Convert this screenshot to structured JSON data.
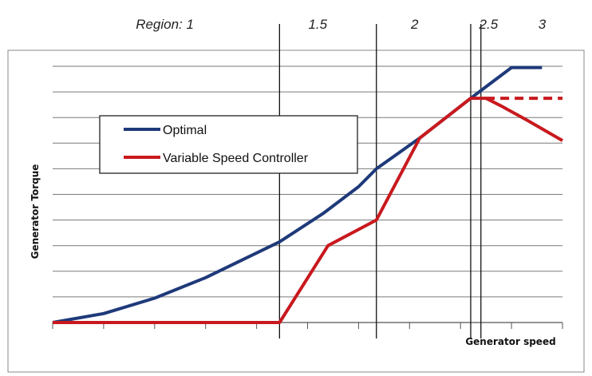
{
  "chart_data": {
    "type": "line",
    "title": "",
    "xlabel": "Generator speed",
    "ylabel": "Generator Torque",
    "xlim": [
      0,
      10
    ],
    "ylim": [
      0,
      10
    ],
    "grid": "horizontal",
    "legend_position": "upper-left",
    "regions": [
      {
        "label": "Region: 1",
        "x": 2.2
      },
      {
        "label": "1.5",
        "x": 5.2
      },
      {
        "label": "2",
        "x": 7.1
      },
      {
        "label": "2.5",
        "x": 8.55
      },
      {
        "label": "3",
        "x": 9.6
      }
    ],
    "region_boundaries": [
      4.45,
      6.35,
      8.2,
      8.4
    ],
    "series": [
      {
        "name": "Optimal",
        "color": "#1f3a7a",
        "style": "solid",
        "x": [
          0,
          1,
          2,
          3,
          4.45,
          5.3,
          6.0,
          6.35,
          7.2,
          8.2,
          8.6,
          9.0,
          9.6
        ],
        "y": [
          0,
          0.35,
          0.95,
          1.75,
          3.15,
          4.25,
          5.3,
          6.0,
          7.2,
          8.75,
          9.35,
          9.95,
          9.95
        ]
      },
      {
        "name": "Variable Speed Controller",
        "color": "#c8191e",
        "style": "solid",
        "x": [
          0,
          4.45,
          5.4,
          6.35,
          7.2,
          8.2,
          8.5,
          8.8,
          9.3,
          10.0
        ],
        "y": [
          0,
          0,
          3.0,
          4.0,
          7.2,
          8.75,
          8.75,
          8.45,
          7.9,
          7.1
        ]
      },
      {
        "name": "",
        "color": "#c8191e",
        "style": "dashed",
        "x": [
          8.5,
          10.0
        ],
        "y": [
          8.75,
          8.75
        ]
      }
    ]
  }
}
